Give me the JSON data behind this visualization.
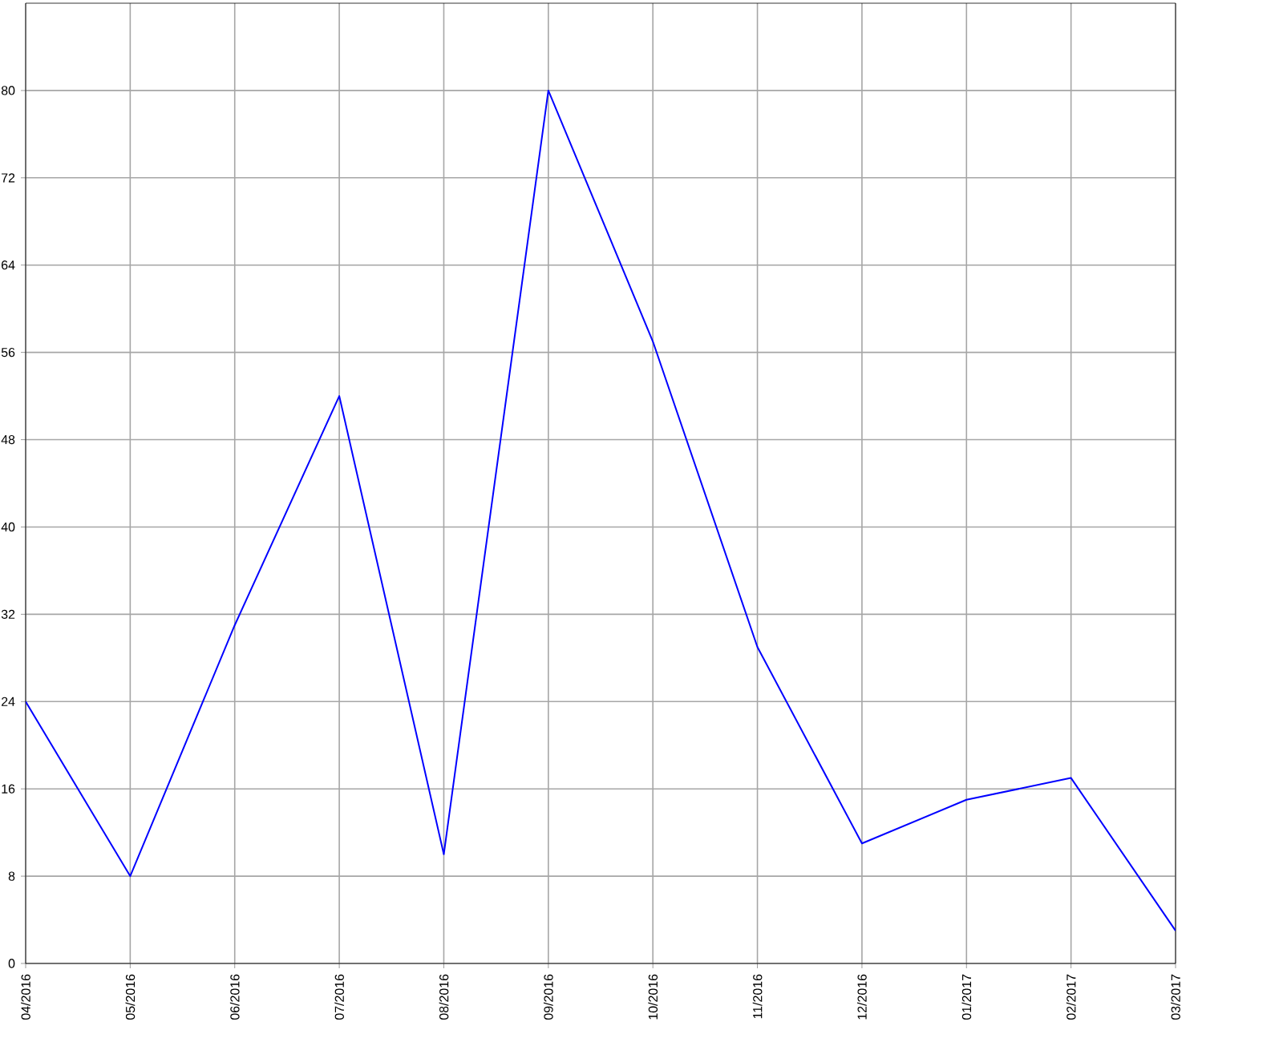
{
  "chart_data": {
    "type": "line",
    "categories": [
      "04/2016",
      "05/2016",
      "06/2016",
      "07/2016",
      "08/2016",
      "09/2016",
      "10/2016",
      "11/2016",
      "12/2016",
      "01/2017",
      "02/2017",
      "03/2017"
    ],
    "values": [
      24,
      8,
      31,
      52,
      10,
      80,
      57,
      29,
      11,
      15,
      17,
      3
    ],
    "color": "#0000ff",
    "ylim": [
      0,
      88
    ],
    "yticks": [
      0,
      8,
      16,
      24,
      32,
      40,
      48,
      56,
      64,
      72,
      80
    ],
    "grid": true,
    "marker": "none",
    "line_style": "solid"
  }
}
